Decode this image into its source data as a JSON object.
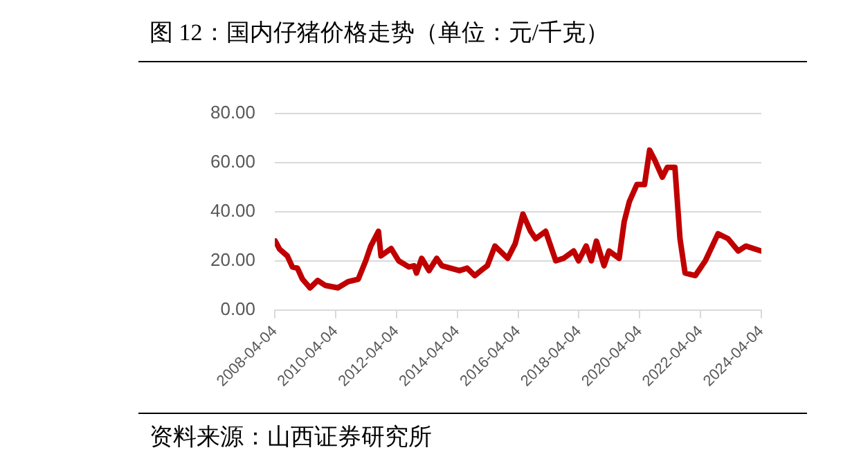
{
  "chart_data": {
    "type": "line",
    "title": "图 12：国内仔猪价格走势（单位：元/千克）",
    "annotations": [
      "资料来源：山西证券研究所"
    ],
    "x": [
      "2008-04-10",
      "2008-06",
      "2008-09",
      "2008-11",
      "2009-01",
      "2009-03",
      "2009-06",
      "2009-09",
      "2009-12",
      "2010-05",
      "2010-09",
      "2011-01",
      "2011-04",
      "2011-06",
      "2011-09",
      "2011-10",
      "2012-02",
      "2012-05",
      "2012-09",
      "2012-11",
      "2012-12",
      "2013-02",
      "2013-05",
      "2013-08",
      "2013-10",
      "2014-05",
      "2014-08",
      "2014-11",
      "2015-02",
      "2015-04",
      "2015-07",
      "2015-12",
      "2016-03",
      "2016-06",
      "2016-09",
      "2016-11",
      "2017-03",
      "2017-07",
      "2017-10",
      "2018-02",
      "2018-04",
      "2018-07",
      "2018-09",
      "2018-11",
      "2019-02",
      "2019-04",
      "2019-08",
      "2019-10",
      "2019-12",
      "2020-03",
      "2020-06",
      "2020-08",
      "2020-10",
      "2021-01",
      "2021-03",
      "2021-06",
      "2021-08",
      "2021-10",
      "2022-02",
      "2022-06",
      "2022-11",
      "2023-03",
      "2023-07",
      "2023-10",
      "2024-04"
    ],
    "series": [
      {
        "color": "#c00000",
        "values": [
          28,
          24.7,
          22,
          17.5,
          17,
          12.6,
          9,
          12,
          10,
          9,
          11.5,
          12.5,
          20,
          26,
          32,
          22,
          25,
          20,
          17.5,
          18,
          15,
          21,
          16,
          21,
          18,
          16,
          17,
          14,
          16.5,
          18,
          26,
          21,
          27,
          39,
          32,
          29,
          32,
          20,
          21,
          24,
          20,
          26,
          20,
          28,
          18,
          24,
          21,
          36,
          44,
          51,
          51,
          65,
          61,
          54,
          58,
          58,
          29,
          15,
          14,
          20,
          31,
          29,
          24,
          26,
          24
        ]
      }
    ],
    "xlim": [
      "2008-04-04",
      "2024-04-04"
    ],
    "xticks": [
      "2008-04-04",
      "2010-04-04",
      "2012-04-04",
      "2014-04-04",
      "2016-04-04",
      "2018-04-04",
      "2020-04-04",
      "2022-04-04",
      "2024-04-04"
    ],
    "ylim": [
      0,
      80
    ],
    "yticks": [
      {
        "value": 0,
        "label": "0.00"
      },
      {
        "value": 20,
        "label": "20.00"
      },
      {
        "value": 40,
        "label": "40.00"
      },
      {
        "value": 60,
        "label": "60.00"
      },
      {
        "value": 80,
        "label": "80.00"
      }
    ],
    "grid": "y",
    "legend": false,
    "marker": "none",
    "line_style": "solid"
  }
}
